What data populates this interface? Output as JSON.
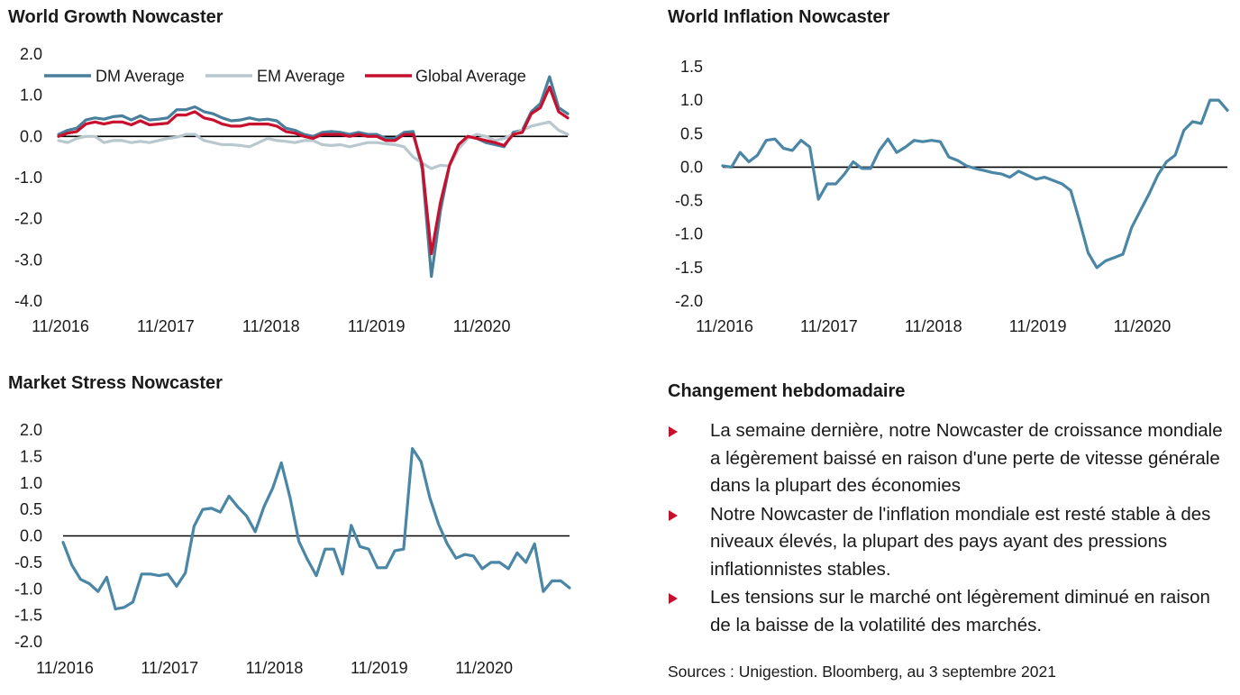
{
  "colors": {
    "dm": "#4a7f9b",
    "em": "#b9c7ce",
    "global": "#c8102e",
    "single": "#4a86a5",
    "axis": "#000000",
    "bullet": "#c8102e"
  },
  "chart_data": [
    {
      "type": "line",
      "title": "World Growth Nowcaster",
      "xlabel": "",
      "ylabel": "",
      "xlim": [
        0,
        58
      ],
      "ylim": [
        -4.0,
        2.0
      ],
      "ytick_labels": [
        "2.0",
        "1.0",
        "0.0",
        "-1.0",
        "-2.0",
        "-3.0",
        "-4.0"
      ],
      "ytick_values": [
        2,
        1,
        0,
        -1,
        -2,
        -3,
        -4
      ],
      "xtick_labels": [
        "11/2016",
        "11/2017",
        "11/2018",
        "11/2019",
        "11/2020"
      ],
      "xtick_values": [
        0,
        12,
        24,
        36,
        48
      ],
      "grid": false,
      "legend": "top",
      "series": [
        {
          "name": "DM Average",
          "color_key": "dm",
          "values": [
            0.05,
            0.15,
            0.2,
            0.4,
            0.45,
            0.42,
            0.48,
            0.5,
            0.4,
            0.5,
            0.4,
            0.42,
            0.45,
            0.65,
            0.65,
            0.72,
            0.6,
            0.55,
            0.45,
            0.38,
            0.4,
            0.45,
            0.4,
            0.42,
            0.38,
            0.2,
            0.15,
            0.05,
            0.0,
            0.1,
            0.12,
            0.1,
            0.05,
            0.1,
            0.05,
            0.05,
            -0.05,
            -0.05,
            0.1,
            0.12,
            -0.8,
            -3.4,
            -1.8,
            -0.7,
            -0.2,
            0.0,
            -0.05,
            -0.15,
            -0.2,
            -0.25,
            0.1,
            0.15,
            0.6,
            0.8,
            1.45,
            0.7,
            0.55
          ]
        },
        {
          "name": "EM Average",
          "color_key": "em",
          "values": [
            -0.1,
            -0.15,
            -0.05,
            0.0,
            0.0,
            -0.15,
            -0.1,
            -0.1,
            -0.15,
            -0.12,
            -0.15,
            -0.1,
            -0.05,
            -0.02,
            0.05,
            0.05,
            -0.1,
            -0.15,
            -0.2,
            -0.2,
            -0.22,
            -0.25,
            -0.15,
            -0.05,
            -0.1,
            -0.12,
            -0.15,
            -0.1,
            -0.1,
            -0.2,
            -0.22,
            -0.2,
            -0.25,
            -0.2,
            -0.15,
            -0.15,
            -0.18,
            -0.2,
            -0.25,
            -0.5,
            -0.65,
            -0.78,
            -0.7,
            -0.72,
            -0.3,
            -0.05,
            0.05,
            0.0,
            -0.1,
            -0.05,
            0.05,
            0.15,
            0.25,
            0.3,
            0.35,
            0.15,
            0.05
          ]
        },
        {
          "name": "Global Average",
          "color_key": "global",
          "values": [
            0.0,
            0.08,
            0.12,
            0.3,
            0.35,
            0.3,
            0.35,
            0.35,
            0.28,
            0.38,
            0.28,
            0.3,
            0.32,
            0.52,
            0.52,
            0.6,
            0.45,
            0.4,
            0.3,
            0.25,
            0.25,
            0.3,
            0.3,
            0.3,
            0.25,
            0.12,
            0.08,
            0.0,
            -0.05,
            0.05,
            0.05,
            0.05,
            0.0,
            0.05,
            0.0,
            0.0,
            -0.1,
            -0.1,
            0.05,
            0.05,
            -0.7,
            -2.85,
            -1.6,
            -0.7,
            -0.2,
            0.0,
            -0.05,
            -0.1,
            -0.15,
            -0.22,
            0.05,
            0.1,
            0.55,
            0.7,
            1.2,
            0.6,
            0.45
          ]
        }
      ]
    },
    {
      "type": "line",
      "title": "World Inflation Nowcaster",
      "xlabel": "",
      "ylabel": "",
      "xlim": [
        0,
        58
      ],
      "ylim": [
        -2.0,
        1.5
      ],
      "ytick_labels": [
        "1.5",
        "1.0",
        "0.5",
        "0.0",
        "-0.5",
        "-1.0",
        "-1.5",
        "-2.0"
      ],
      "ytick_values": [
        1.5,
        1,
        0.5,
        0,
        -0.5,
        -1,
        -1.5,
        -2
      ],
      "xtick_labels": [
        "11/2016",
        "11/2017",
        "11/2018",
        "11/2019",
        "11/2020"
      ],
      "xtick_values": [
        0,
        12,
        24,
        36,
        48
      ],
      "grid": false,
      "series": [
        {
          "color_key": "single",
          "values": [
            0.02,
            0.0,
            0.22,
            0.08,
            0.18,
            0.4,
            0.42,
            0.28,
            0.25,
            0.4,
            0.3,
            -0.48,
            -0.25,
            -0.25,
            -0.1,
            0.08,
            -0.02,
            -0.02,
            0.25,
            0.42,
            0.22,
            0.3,
            0.4,
            0.38,
            0.4,
            0.38,
            0.15,
            0.1,
            0.02,
            -0.02,
            -0.05,
            -0.08,
            -0.1,
            -0.15,
            -0.06,
            -0.12,
            -0.18,
            -0.15,
            -0.2,
            -0.25,
            -0.35,
            -0.8,
            -1.28,
            -1.5,
            -1.4,
            -1.35,
            -1.3,
            -0.9,
            -0.65,
            -0.4,
            -0.12,
            0.08,
            0.18,
            0.55,
            0.68,
            0.65,
            1.0,
            1.0,
            0.85
          ]
        }
      ]
    },
    {
      "type": "line",
      "title": "Market Stress Nowcaster",
      "xlabel": "",
      "ylabel": "",
      "xlim": [
        0,
        58
      ],
      "ylim": [
        -2.0,
        2.0
      ],
      "ytick_labels": [
        "2.0",
        "1.5",
        "1.0",
        "0.5",
        "0.0",
        "-0.5",
        "-1.0",
        "-1.5",
        "-2.0"
      ],
      "ytick_values": [
        2,
        1.5,
        1,
        0.5,
        0,
        -0.5,
        -1,
        -1.5,
        -2
      ],
      "xtick_labels": [
        "11/2016",
        "11/2017",
        "11/2018",
        "11/2019",
        "11/2020"
      ],
      "xtick_values": [
        0,
        12,
        24,
        36,
        48
      ],
      "grid": false,
      "series": [
        {
          "color_key": "single",
          "values": [
            -0.12,
            -0.55,
            -0.82,
            -0.9,
            -1.05,
            -0.78,
            -1.38,
            -1.35,
            -1.25,
            -0.72,
            -0.72,
            -0.75,
            -0.72,
            -0.95,
            -0.7,
            0.18,
            0.5,
            0.52,
            0.45,
            0.75,
            0.55,
            0.38,
            0.08,
            0.55,
            0.9,
            1.38,
            0.72,
            -0.1,
            -0.45,
            -0.75,
            -0.25,
            -0.25,
            -0.72,
            0.2,
            -0.2,
            -0.25,
            -0.6,
            -0.6,
            -0.28,
            -0.25,
            1.65,
            1.4,
            0.72,
            0.22,
            -0.15,
            -0.42,
            -0.35,
            -0.38,
            -0.62,
            -0.5,
            -0.5,
            -0.62,
            -0.32,
            -0.5,
            -0.15,
            -1.05,
            -0.85,
            -0.85,
            -0.98
          ]
        }
      ]
    }
  ],
  "summary": {
    "heading": "Changement hebdomadaire",
    "bullets": [
      "La semaine dernière, notre Nowcaster de croissance mondiale a légèrement baissé en raison d'une perte de vitesse générale dans la plupart des économies",
      "Notre Nowcaster de l'inflation mondiale est resté stable à des niveaux élevés, la plupart des pays ayant des pressions inflationnistes stables.",
      "Les tensions sur le marché ont légèrement diminué en raison de la baisse de la volatilité des marchés."
    ],
    "sources": "Sources : Unigestion. Bloomberg, au 3 septembre 2021"
  }
}
